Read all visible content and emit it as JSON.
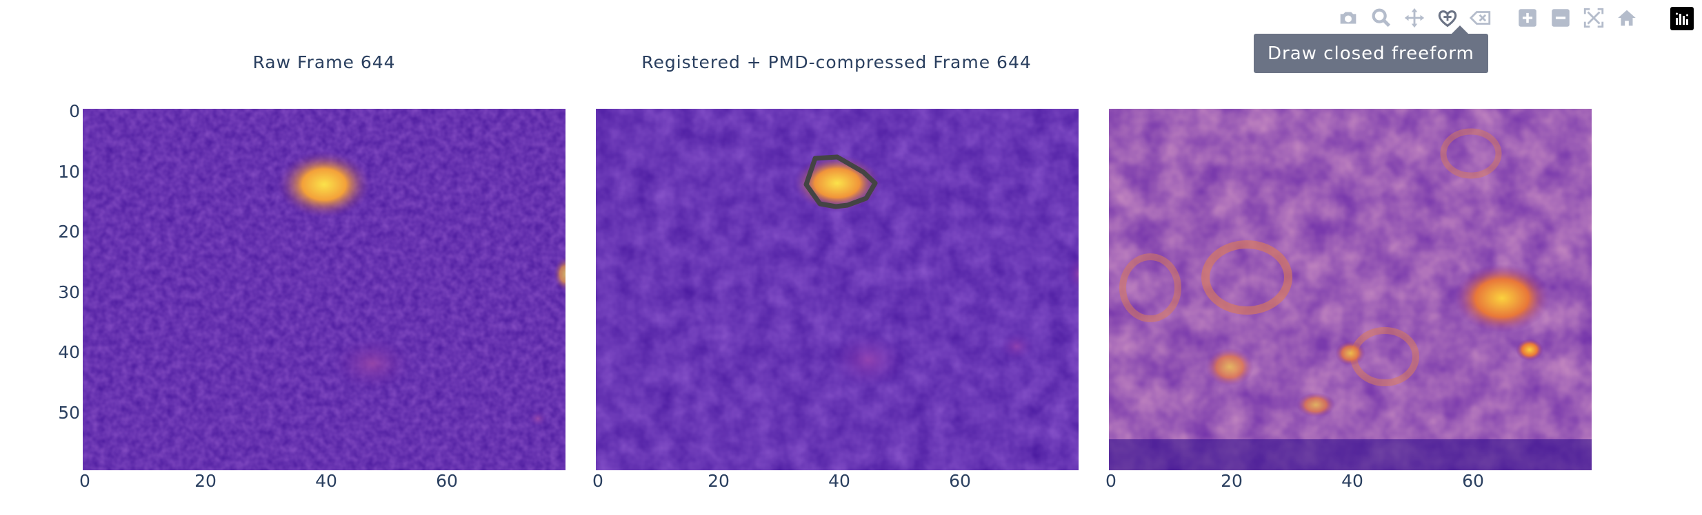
{
  "panels": [
    {
      "title": "Raw Frame 644"
    },
    {
      "title": "Registered + PMD-compressed Frame 644"
    },
    {
      "title": ""
    }
  ],
  "y_ticks": [
    "0",
    "10",
    "20",
    "30",
    "40",
    "50"
  ],
  "x_ticks": [
    "0",
    "20",
    "40",
    "60"
  ],
  "modebar": {
    "buttons": [
      {
        "name": "camera-icon",
        "label": "Download plot as a png"
      },
      {
        "name": "zoom-icon",
        "label": "Zoom"
      },
      {
        "name": "pan-icon",
        "label": "Pan"
      },
      {
        "name": "draw-closed-freeform-icon",
        "label": "Draw closed freeform"
      },
      {
        "name": "erase-shape-icon",
        "label": "Erase active shape"
      },
      {
        "name": "zoom-in-icon",
        "label": "Zoom in"
      },
      {
        "name": "zoom-out-icon",
        "label": "Zoom out"
      },
      {
        "name": "autoscale-icon",
        "label": "Autoscale"
      },
      {
        "name": "reset-axes-icon",
        "label": "Reset axes"
      },
      {
        "name": "plotly-logo-icon",
        "label": "Produced with Plotly"
      }
    ],
    "tooltip": "Draw closed freeform"
  },
  "colors": {
    "bg_dark": "#2c0b8a",
    "bg_mid": "#5a1ea6",
    "highlight": "#f9c53a",
    "accent": "#e8773a",
    "drawn_shape": "#444444",
    "icon": "#b4bccb"
  },
  "axes": {
    "x_range": [
      0,
      80
    ],
    "y_range": [
      0,
      60
    ]
  }
}
